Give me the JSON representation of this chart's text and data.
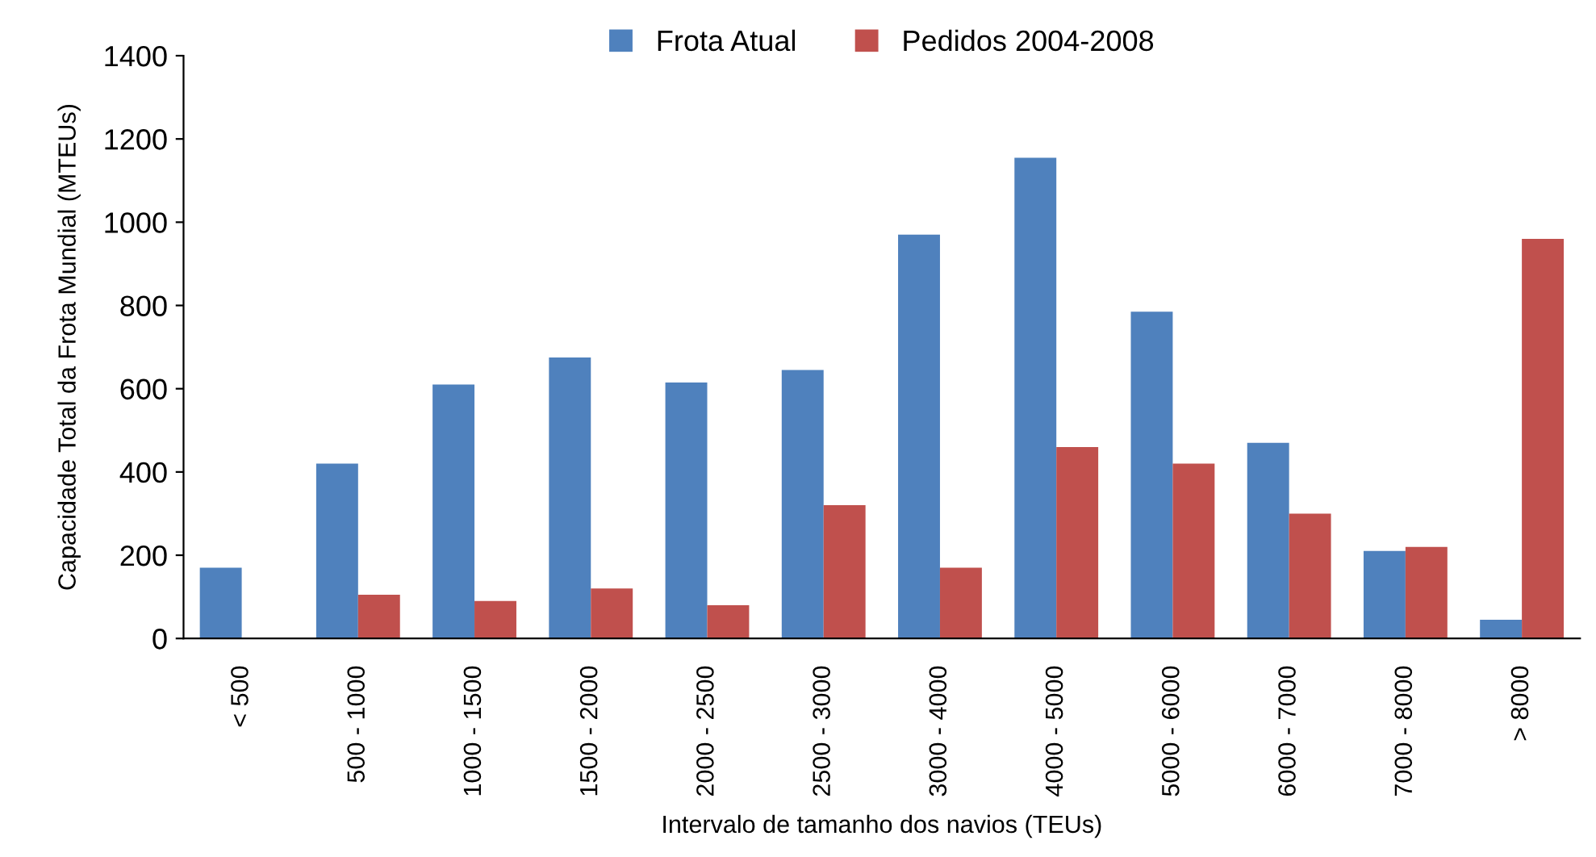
{
  "chart_data": {
    "type": "bar",
    "xlabel": "Intervalo de tamanho dos navios (TEUs)",
    "ylabel": "Capacidade Total da Frota Mundial (MTEUs)",
    "categories": [
      "< 500",
      "500 - 1000",
      "1000 - 1500",
      "1500 - 2000",
      "2000 - 2500",
      "2500 - 3000",
      "3000 - 4000",
      "4000 - 5000",
      "5000 - 6000",
      "6000 - 7000",
      "7000 - 8000",
      "> 8000"
    ],
    "series": [
      {
        "name": "Frota Atual",
        "color": "#4f81bd",
        "values": [
          170,
          420,
          610,
          675,
          615,
          645,
          970,
          1155,
          785,
          470,
          210,
          45
        ]
      },
      {
        "name": "Pedidos 2004-2008",
        "color": "#c0504d",
        "values": [
          0,
          105,
          90,
          120,
          80,
          320,
          170,
          460,
          420,
          300,
          220,
          960
        ]
      }
    ],
    "ylim": [
      0,
      1400
    ],
    "yticks": [
      0,
      200,
      400,
      600,
      800,
      1000,
      1200,
      1400
    ],
    "grid": false,
    "legend": "top"
  }
}
